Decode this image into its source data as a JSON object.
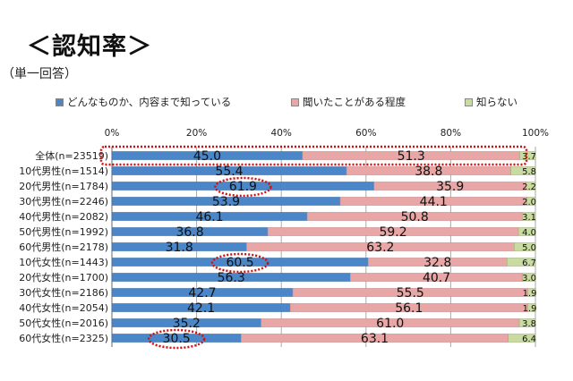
{
  "header": {
    "title": "＜認知率＞",
    "subtitle": "（単一回答）"
  },
  "chart_data": {
    "type": "bar",
    "orientation": "horizontal",
    "stacked": "percent",
    "title": "＜認知率＞",
    "subtitle": "（単一回答）",
    "xlim": [
      0,
      100
    ],
    "x_ticks": [
      "0%",
      "20%",
      "40%",
      "60%",
      "80%",
      "100%"
    ],
    "grid": true,
    "legend_position": "top",
    "categories": [
      "全体(n=23519)",
      "10代男性(n=1514)",
      "20代男性(n=1784)",
      "30代男性(n=2246)",
      "40代男性(n=2082)",
      "50代男性(n=1992)",
      "60代男性(n=2178)",
      "10代女性(n=1443)",
      "20代女性(n=1700)",
      "30代女性(n=2186)",
      "40代女性(n=2054)",
      "50代女性(n=2016)",
      "60代女性(n=2325)"
    ],
    "series": [
      {
        "name": "どんなものか、内容まで知っている",
        "color": "#4a86c8",
        "values": [
          45.0,
          55.4,
          61.9,
          53.9,
          46.1,
          36.8,
          31.8,
          60.5,
          56.3,
          42.7,
          42.1,
          35.2,
          30.5
        ]
      },
      {
        "name": "聞いたことがある程度",
        "color": "#e8a7a6",
        "values": [
          51.3,
          38.8,
          35.9,
          44.1,
          50.8,
          59.2,
          63.2,
          32.8,
          40.7,
          55.5,
          56.1,
          61.0,
          63.1
        ]
      },
      {
        "name": "知らない",
        "color": "#c9dba0",
        "values": [
          3.7,
          5.8,
          2.2,
          2.0,
          3.1,
          4.0,
          5.0,
          6.7,
          3.0,
          1.9,
          1.9,
          3.8,
          6.4
        ]
      }
    ],
    "highlights": {
      "color": "#d01010",
      "rows": [
        "全体(n=23519)"
      ],
      "values": [
        "61.9",
        "60.5",
        "30.5"
      ]
    }
  }
}
